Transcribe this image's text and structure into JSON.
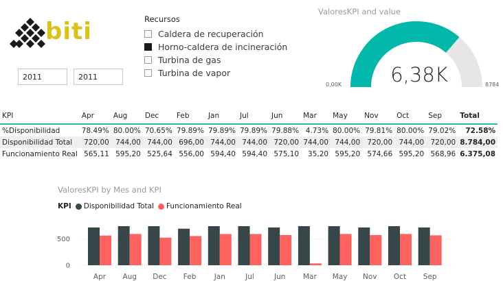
{
  "logo": {
    "text": "biti"
  },
  "years": {
    "from": "2011",
    "to": "2011"
  },
  "slicer": {
    "title": "Recursos",
    "items": [
      {
        "label": "Caldera de recuperación",
        "checked": false
      },
      {
        "label": "Horno-caldera de incineración",
        "checked": true
      },
      {
        "label": "Turbina de gas",
        "checked": false
      },
      {
        "label": "Turbina de vapor",
        "checked": false
      }
    ]
  },
  "gauge": {
    "title": "ValoresKPI and value",
    "value_label": "6,38K",
    "min_label": "0,00K",
    "max_label": "8784",
    "value": 6375.08,
    "max": 8784,
    "fill_color": "#01b8aa",
    "track_color": "#e6e6e6"
  },
  "table": {
    "headers": [
      "KPI",
      "Apr",
      "Aug",
      "Dec",
      "Feb",
      "Jan",
      "Jul",
      "Jun",
      "Mar",
      "May",
      "Nov",
      "Oct",
      "Sep",
      "Total"
    ],
    "rows": [
      {
        "kpi": "%Disponibilidad",
        "values": [
          "78.49%",
          "80.00%",
          "70.65%",
          "79.89%",
          "79.89%",
          "79.89%",
          "79.88%",
          "4.73%",
          "80.00%",
          "79.81%",
          "80.00%",
          "79.02%"
        ],
        "total": "72.58%"
      },
      {
        "kpi": "Disponibilidad Total",
        "values": [
          "720,00",
          "744,00",
          "744,00",
          "696,00",
          "744,00",
          "744,00",
          "720,00",
          "744,00",
          "744,00",
          "720,00",
          "744,00",
          "720,00"
        ],
        "total": "8.784,00"
      },
      {
        "kpi": "Funcionamiento Real",
        "values": [
          "565,11",
          "595,20",
          "525,64",
          "556,00",
          "594,40",
          "594,40",
          "575,10",
          "35,20",
          "595,20",
          "574,66",
          "595,20",
          "568,96"
        ],
        "total": "6.375,08"
      }
    ]
  },
  "chart_data": {
    "type": "bar",
    "title": "ValoresKPI by Mes and KPI",
    "legend_title": "KPI",
    "categories": [
      "Apr",
      "Aug",
      "Dec",
      "Feb",
      "Jan",
      "Jul",
      "Jun",
      "Mar",
      "May",
      "Nov",
      "Oct",
      "Sep"
    ],
    "series": [
      {
        "name": "Disponibilidad Total",
        "color": "#374649",
        "values": [
          720,
          744,
          744,
          696,
          744,
          744,
          720,
          744,
          744,
          720,
          744,
          720
        ]
      },
      {
        "name": "Funcionamiento Real",
        "color": "#fd625e",
        "values": [
          565.11,
          595.2,
          525.64,
          556,
          594.4,
          594.4,
          575.1,
          35.2,
          595.2,
          574.66,
          595.2,
          568.96
        ]
      }
    ],
    "y_ticks": [
      "0",
      "500"
    ],
    "ylim": [
      0,
      744
    ],
    "grid": true,
    "legend_position": "top-left"
  }
}
